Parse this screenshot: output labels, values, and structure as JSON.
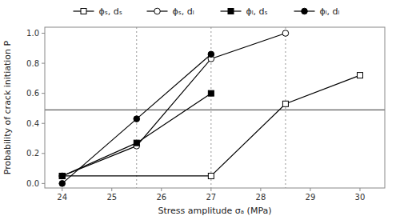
{
  "chart_data": {
    "type": "line",
    "xlabel": "Stress amplitude σₐ (MPa)",
    "ylabel": "Probability of crack initiation P",
    "series": [
      {
        "name": "ϕₛ, dₛ",
        "color": "black",
        "marker": "open-square",
        "x": [
          24,
          27,
          28.5,
          30
        ],
        "values": [
          0.05,
          0.05,
          0.53,
          0.72
        ]
      },
      {
        "name": "ϕₛ, dₗ",
        "color": "black",
        "marker": "open-circle",
        "x": [
          24,
          25.5,
          27,
          28.5
        ],
        "values": [
          0.05,
          0.25,
          0.83,
          1.0
        ]
      },
      {
        "name": "ϕₗ, dₛ",
        "color": "black",
        "marker": "filled-square",
        "x": [
          24,
          25.5,
          27
        ],
        "values": [
          0.05,
          0.27,
          0.6
        ]
      },
      {
        "name": "ϕₗ, dₗ",
        "color": "black",
        "marker": "filled-circle",
        "x": [
          24,
          25.5,
          27
        ],
        "values": [
          0.0,
          0.43,
          0.86
        ]
      }
    ],
    "hlines": [
      0.49
    ],
    "vlines": [
      25.5,
      27,
      28.5
    ],
    "xlim": [
      23.65,
      30.5
    ],
    "ylim": [
      -0.03,
      1.04
    ],
    "xticks": [
      24,
      25,
      26,
      27,
      28,
      29,
      30
    ],
    "yticks": [
      {
        "value": 0,
        "label": "0.0"
      },
      {
        "value": 0.2,
        "label": "0.2"
      },
      {
        "value": 0.4,
        "label": "0.4"
      },
      {
        "value": 0.6,
        "label": "0.6"
      },
      {
        "value": 0.8,
        "label": "0.8"
      },
      {
        "value": 1,
        "label": "1.0"
      }
    ],
    "grid": false,
    "legend": "top"
  }
}
